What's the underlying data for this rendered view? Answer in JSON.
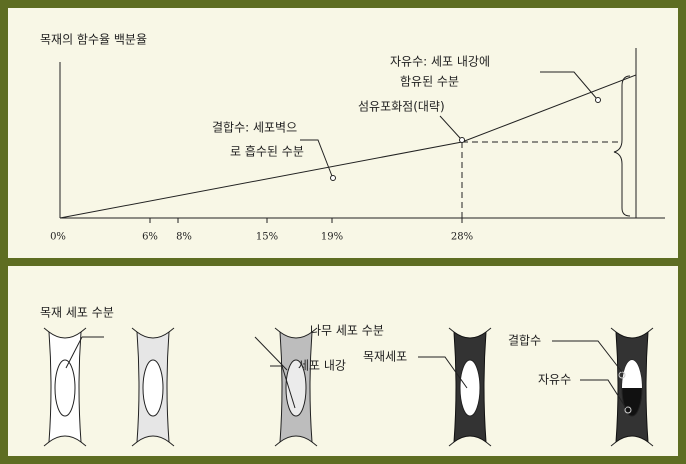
{
  "top": {
    "title": "목재의 함수율 백분율",
    "ticks": [
      "0%",
      "6%",
      "8%",
      "15%",
      "19%",
      "28%"
    ],
    "free_water": [
      "자유수: 세포 내강에",
      "함유된 수분"
    ],
    "fiber_saturation": "섬유포화점(대략)",
    "bound_water": [
      "결합수: 세포벽으",
      "로 흡수된 수분"
    ]
  },
  "bottom": {
    "title": "목재 세포 수분",
    "labels": {
      "wood_cell_water": "나무 세포 수분",
      "lumen": "세포 내강",
      "wood_cell": "목재세포",
      "bound": "결합수",
      "free": "자유수"
    }
  }
}
